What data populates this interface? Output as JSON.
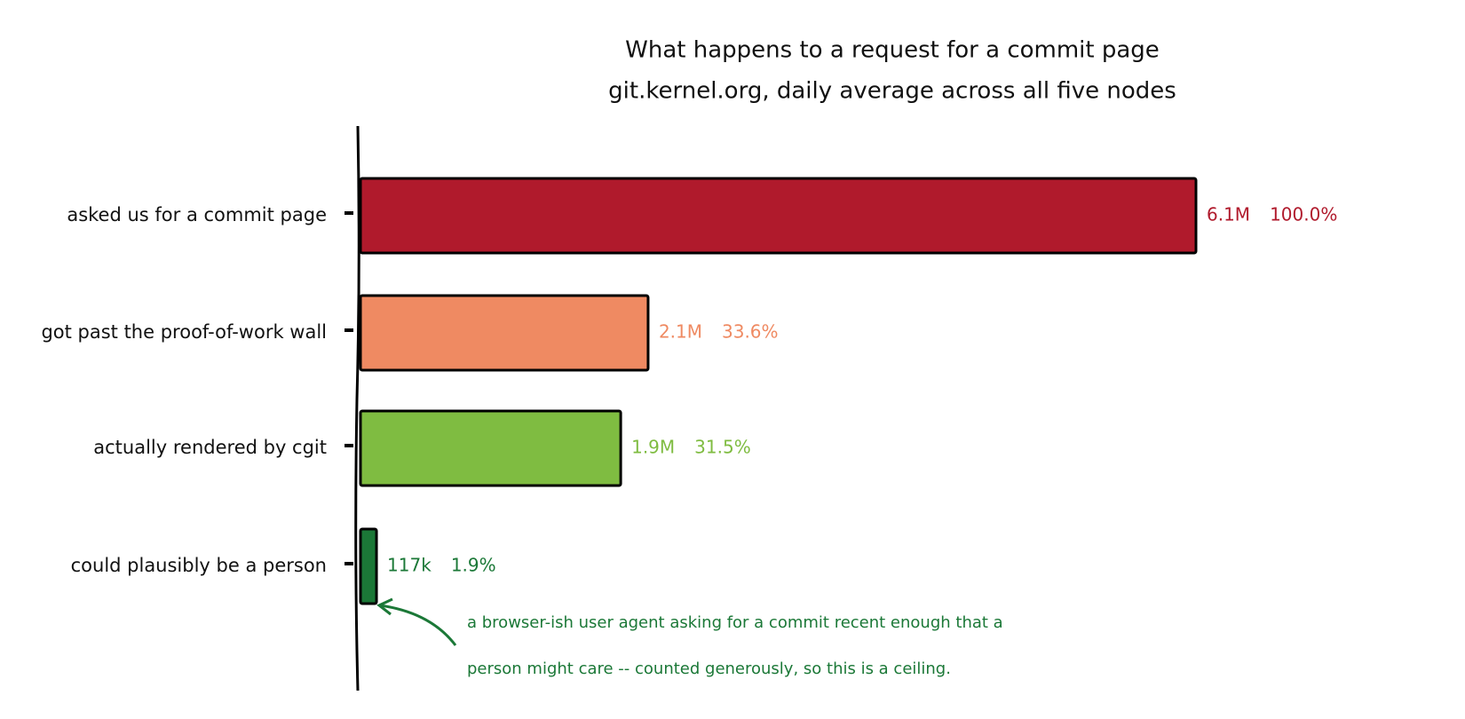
{
  "chart_data": {
    "type": "barh",
    "title": "What happens to a request for a commit page",
    "subtitle": "git.kernel.org, daily average across all five nodes",
    "categories": [
      "asked us for a commit page",
      "got past the proof-of-work wall",
      "actually rendered by cgit",
      "could plausibly be a person"
    ],
    "values": [
      6100000,
      2100000,
      1900000,
      117000
    ],
    "value_labels": [
      "6.1M",
      "2.1M",
      "1.9M",
      "117k"
    ],
    "percents": [
      100.0,
      33.6,
      31.5,
      1.9
    ],
    "percent_labels": [
      "100.0%",
      "33.6%",
      "31.5%",
      "1.9%"
    ],
    "colors": [
      "#b01a2c",
      "#ef8a62",
      "#7fbc41",
      "#1b7837"
    ],
    "annotation": [
      "a browser-ish user agent asking for a commit recent enough that a",
      "person might care -- counted generously, so this is a ceiling."
    ]
  }
}
